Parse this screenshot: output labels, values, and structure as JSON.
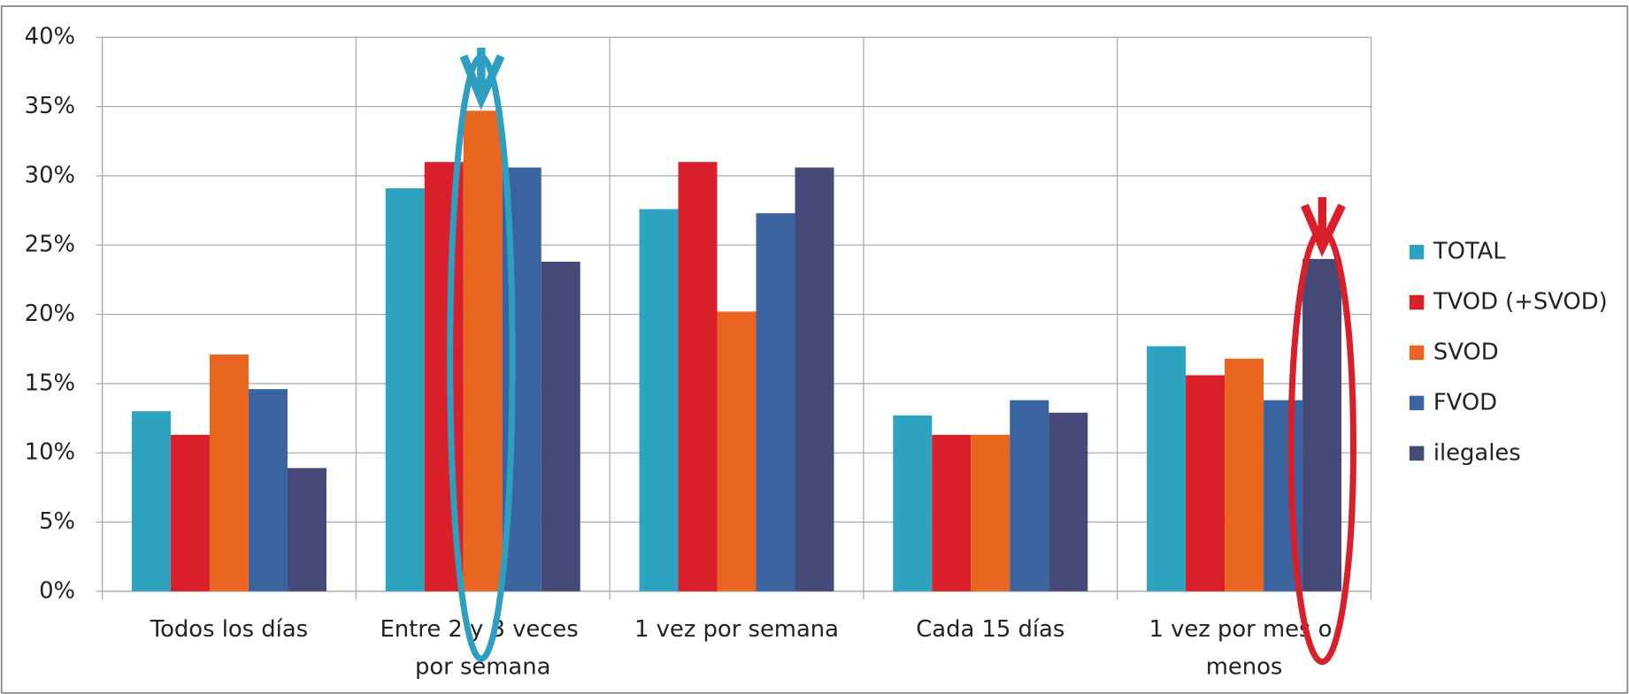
{
  "chart_data": {
    "type": "bar",
    "categories": [
      "Todos los días",
      "Entre 2 y 3 veces por semana",
      "1 vez por semana",
      "Cada 15 días",
      "1 vez por mes o menos"
    ],
    "series": [
      {
        "name": "TOTAL",
        "color": "#2ea3c0",
        "values": [
          13.0,
          29.1,
          27.6,
          12.7,
          17.7
        ]
      },
      {
        "name": "TVOD (+SVOD)",
        "color": "#d9202a",
        "values": [
          11.3,
          31.0,
          31.0,
          11.3,
          15.6
        ]
      },
      {
        "name": "SVOD",
        "color": "#ea6620",
        "values": [
          17.1,
          34.7,
          20.2,
          11.3,
          16.8
        ]
      },
      {
        "name": "FVOD",
        "color": "#3a64a0",
        "values": [
          14.6,
          30.6,
          27.3,
          13.8,
          13.8
        ]
      },
      {
        "name": "ilegales",
        "color": "#464a78",
        "values": [
          8.9,
          23.8,
          30.6,
          12.9,
          24.0
        ]
      }
    ],
    "ylim": [
      0,
      40
    ],
    "yticks": [
      {
        "value": 0,
        "label": "0%"
      },
      {
        "value": 5,
        "label": "5%"
      },
      {
        "value": 10,
        "label": "10%"
      },
      {
        "value": 15,
        "label": "15%"
      },
      {
        "value": 20,
        "label": "20%"
      },
      {
        "value": 25,
        "label": "25%"
      },
      {
        "value": 30,
        "label": "30%"
      },
      {
        "value": 35,
        "label": "35%"
      },
      {
        "value": 40,
        "label": "40%"
      }
    ],
    "grid": true,
    "legend": "right"
  }
}
